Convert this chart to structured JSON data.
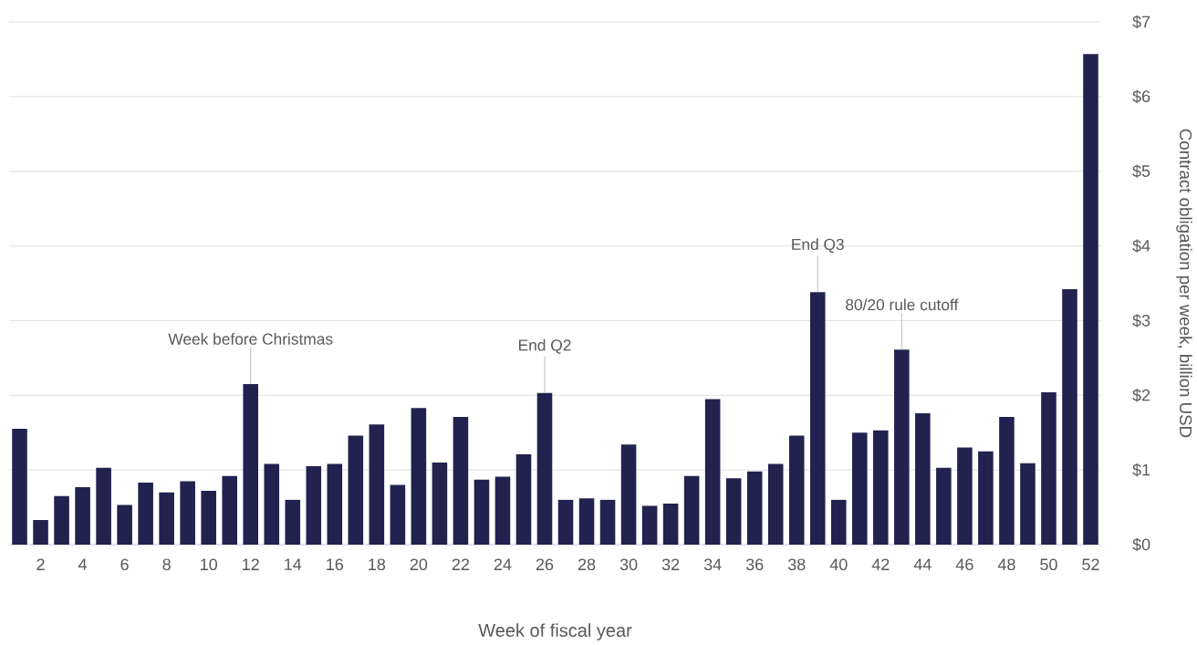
{
  "chart_data": {
    "type": "bar",
    "xlabel": "Week of fiscal year",
    "ylabel": "Contract obligation per week, billion USD",
    "x": [
      1,
      2,
      3,
      4,
      5,
      6,
      7,
      8,
      9,
      10,
      11,
      12,
      13,
      14,
      15,
      16,
      17,
      18,
      19,
      20,
      21,
      22,
      23,
      24,
      25,
      26,
      27,
      28,
      29,
      30,
      31,
      32,
      33,
      34,
      35,
      36,
      37,
      38,
      39,
      40,
      41,
      42,
      43,
      44,
      45,
      46,
      47,
      48,
      49,
      50,
      51,
      52
    ],
    "values": [
      1.55,
      0.33,
      0.65,
      0.77,
      1.03,
      0.53,
      0.83,
      0.7,
      0.85,
      0.72,
      0.92,
      2.15,
      1.08,
      0.6,
      1.05,
      1.08,
      1.46,
      1.61,
      0.8,
      1.83,
      1.1,
      1.71,
      0.87,
      0.91,
      1.21,
      2.03,
      0.6,
      0.62,
      0.6,
      1.34,
      0.52,
      0.55,
      0.92,
      1.95,
      0.89,
      0.98,
      1.08,
      1.46,
      3.38,
      0.6,
      1.5,
      1.53,
      2.61,
      1.76,
      1.03,
      1.3,
      1.25,
      1.71,
      1.09,
      2.04,
      3.42,
      6.57
    ],
    "color": "#22224f",
    "xlim": [
      0.5,
      52.5
    ],
    "xticks": [
      2,
      4,
      6,
      8,
      10,
      12,
      14,
      16,
      18,
      20,
      22,
      24,
      26,
      28,
      30,
      32,
      34,
      36,
      38,
      40,
      42,
      44,
      46,
      48,
      50,
      52
    ],
    "ylim": [
      0,
      7
    ],
    "yticks": [
      {
        "value": 0,
        "label": "$0"
      },
      {
        "value": 1,
        "label": "$1"
      },
      {
        "value": 2,
        "label": "$2"
      },
      {
        "value": 3,
        "label": "$3"
      },
      {
        "value": 4,
        "label": "$4"
      },
      {
        "value": 5,
        "label": "$5"
      },
      {
        "value": 6,
        "label": "$6"
      },
      {
        "value": 7,
        "label": "$7"
      }
    ],
    "grid": "y",
    "annotations": [
      {
        "text": "Week before Christmas",
        "x": 12,
        "y": 2.15
      },
      {
        "text": "End Q2",
        "x": 26,
        "y": 2.03
      },
      {
        "text": "End Q3",
        "x": 39,
        "y": 3.38
      },
      {
        "text": "80/20 rule cutoff",
        "x": 43,
        "y": 2.61
      }
    ]
  }
}
